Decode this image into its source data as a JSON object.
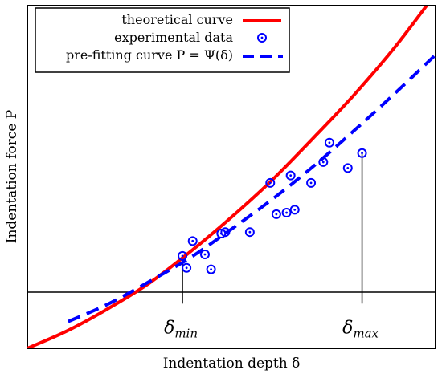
{
  "chart_data": {
    "type": "scatter",
    "xlabel": "Indentation depth δ",
    "ylabel": "Indentation force P",
    "xlim": [
      0,
      10
    ],
    "ylim": [
      -1.5,
      10
    ],
    "baseline_y": 0,
    "axes_ticks": false,
    "legend_placement": "top-left",
    "legend": [
      {
        "label": "theoretical curve",
        "color": "#ff0000",
        "style": "solid-line"
      },
      {
        "label": "experimental data",
        "color": "#0000ff",
        "style": "circle-dot-marker"
      },
      {
        "label": "pre-fitting curve P = Ψ(δ)",
        "color": "#0000ff",
        "style": "dashed-line"
      }
    ],
    "series": [
      {
        "name": "theoretical curve",
        "kind": "line",
        "color": "#ff0000",
        "points": [
          [
            0,
            -1.5
          ],
          [
            1,
            -0.9
          ],
          [
            2,
            -0.15
          ],
          [
            3,
            0.7
          ],
          [
            4,
            1.75
          ],
          [
            5,
            2.9
          ],
          [
            6,
            4.15
          ],
          [
            7,
            5.55
          ],
          [
            8,
            7.0
          ],
          [
            9,
            8.6
          ],
          [
            10,
            10.4
          ]
        ]
      },
      {
        "name": "experimental data",
        "kind": "scatter",
        "color": "#0000ff",
        "points": [
          [
            3.8,
            1.6
          ],
          [
            3.9,
            1.2
          ],
          [
            4.05,
            2.1
          ],
          [
            4.35,
            1.65
          ],
          [
            4.5,
            1.15
          ],
          [
            4.75,
            2.35
          ],
          [
            4.85,
            2.4
          ],
          [
            5.45,
            2.4
          ],
          [
            5.95,
            4.05
          ],
          [
            6.1,
            3.0
          ],
          [
            6.35,
            3.05
          ],
          [
            6.45,
            4.3
          ],
          [
            6.55,
            3.15
          ],
          [
            6.95,
            4.05
          ],
          [
            7.25,
            4.75
          ],
          [
            7.4,
            5.4
          ],
          [
            7.85,
            4.55
          ],
          [
            8.2,
            5.05
          ]
        ]
      },
      {
        "name": "pre-fitting curve P = Ψ(δ)",
        "kind": "dashed-line",
        "color": "#0000ff",
        "points": [
          [
            1,
            -0.6
          ],
          [
            2,
            0.0
          ],
          [
            3,
            0.75
          ],
          [
            4,
            1.55
          ],
          [
            5,
            2.5
          ],
          [
            6,
            3.5
          ],
          [
            7,
            4.6
          ],
          [
            8,
            5.8
          ],
          [
            9,
            7.05
          ],
          [
            10,
            8.35
          ]
        ]
      }
    ],
    "markers": [
      {
        "label": "δ",
        "subscript": "min",
        "x": 3.8,
        "y": 1.6
      },
      {
        "label": "δ",
        "subscript": "max",
        "x": 8.2,
        "y": 5.05
      }
    ]
  }
}
